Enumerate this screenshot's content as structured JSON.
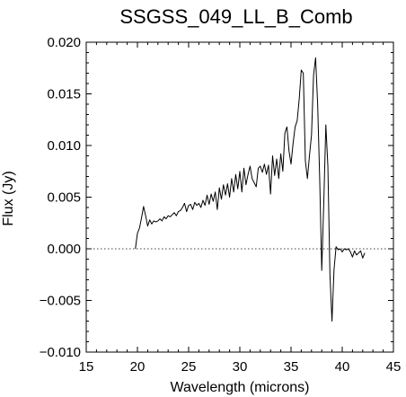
{
  "chart_data": {
    "type": "line",
    "title": "SSGSS_049_LL_B_Comb",
    "xlabel": "Wavelength (microns)",
    "ylabel": "Flux (Jy)",
    "xlim": [
      15,
      45
    ],
    "ylim": [
      -0.01,
      0.02
    ],
    "x_ticks": [
      15,
      20,
      25,
      30,
      35,
      40,
      45
    ],
    "x_tick_labels": [
      "15",
      "20",
      "25",
      "30",
      "35",
      "40",
      "45"
    ],
    "y_ticks": [
      -0.01,
      -0.005,
      0.0,
      0.005,
      0.01,
      0.015,
      0.02
    ],
    "y_tick_labels": [
      "−0.010",
      "−0.005",
      "0.000",
      "0.005",
      "0.010",
      "0.015",
      "0.020"
    ],
    "grid": false,
    "reference_line": {
      "y": 0.0,
      "style": "dotted"
    },
    "colors": {
      "line": "#000000",
      "background": "#ffffff"
    },
    "series": [
      {
        "x": [
          19.8,
          20.0,
          20.2,
          20.4,
          20.6,
          20.8,
          21.0,
          21.2,
          21.4,
          21.6,
          21.8,
          22.0,
          22.2,
          22.4,
          22.6,
          22.8,
          23.0,
          23.2,
          23.4,
          23.6,
          23.8,
          24.0,
          24.2,
          24.4,
          24.6,
          24.8,
          25.0,
          25.2,
          25.4,
          25.6,
          25.8,
          26.0,
          26.2,
          26.4,
          26.6,
          26.8,
          27.0,
          27.2,
          27.4,
          27.6,
          27.8,
          28.0,
          28.2,
          28.4,
          28.6,
          28.8,
          29.0,
          29.2,
          29.4,
          29.6,
          29.8,
          30.0,
          30.2,
          30.4,
          30.6,
          30.8,
          31.0,
          31.2,
          31.4,
          31.6,
          31.8,
          32.0,
          32.2,
          32.4,
          32.6,
          32.8,
          33.0,
          33.2,
          33.4,
          33.6,
          33.8,
          34.0,
          34.2,
          34.4,
          34.6,
          34.8,
          35.0,
          35.2,
          35.4,
          35.6,
          35.8,
          36.0,
          36.2,
          36.4,
          36.6,
          36.8,
          37.0,
          37.2,
          37.4,
          37.6,
          37.8,
          38.0,
          38.2,
          38.4,
          38.6,
          38.8,
          39.0,
          39.2,
          39.4,
          39.6,
          39.8,
          40.0,
          40.2,
          40.4,
          40.6,
          40.8,
          41.0,
          41.2,
          41.4,
          41.6,
          41.8,
          42.0,
          42.2
        ],
        "y": [
          0.0,
          0.0015,
          0.002,
          0.003,
          0.0041,
          0.0032,
          0.0022,
          0.0028,
          0.0024,
          0.0027,
          0.0026,
          0.0027,
          0.0029,
          0.0027,
          0.0031,
          0.0029,
          0.0032,
          0.0031,
          0.0033,
          0.0035,
          0.0032,
          0.0036,
          0.0037,
          0.004,
          0.0044,
          0.0036,
          0.0042,
          0.0043,
          0.0038,
          0.0045,
          0.0042,
          0.0044,
          0.004,
          0.0047,
          0.0042,
          0.0052,
          0.0043,
          0.0053,
          0.0046,
          0.0055,
          0.0038,
          0.0059,
          0.0048,
          0.0062,
          0.0052,
          0.0063,
          0.005,
          0.0068,
          0.0055,
          0.0072,
          0.0058,
          0.0075,
          0.0055,
          0.0078,
          0.0062,
          0.0072,
          0.008,
          0.0068,
          0.0064,
          0.006,
          0.0078,
          0.008,
          0.0074,
          0.0082,
          0.0072,
          0.0081,
          0.0053,
          0.009,
          0.0071,
          0.0087,
          0.0068,
          0.0092,
          0.0075,
          0.0112,
          0.0118,
          0.0095,
          0.0082,
          0.0102,
          0.0118,
          0.0124,
          0.0145,
          0.0173,
          0.017,
          0.0085,
          0.0068,
          0.009,
          0.011,
          0.0168,
          0.0185,
          0.014,
          0.0068,
          -0.0021,
          0.0045,
          0.012,
          0.008,
          -0.0025,
          -0.007,
          -0.002,
          0.0002,
          -0.0001,
          0.0,
          -0.0003,
          0.0,
          -0.0001,
          0.0,
          -0.0003,
          -0.0008,
          -0.0002,
          -0.0006,
          -0.0004,
          -0.0002,
          -0.0009,
          -0.0004
        ]
      }
    ]
  }
}
